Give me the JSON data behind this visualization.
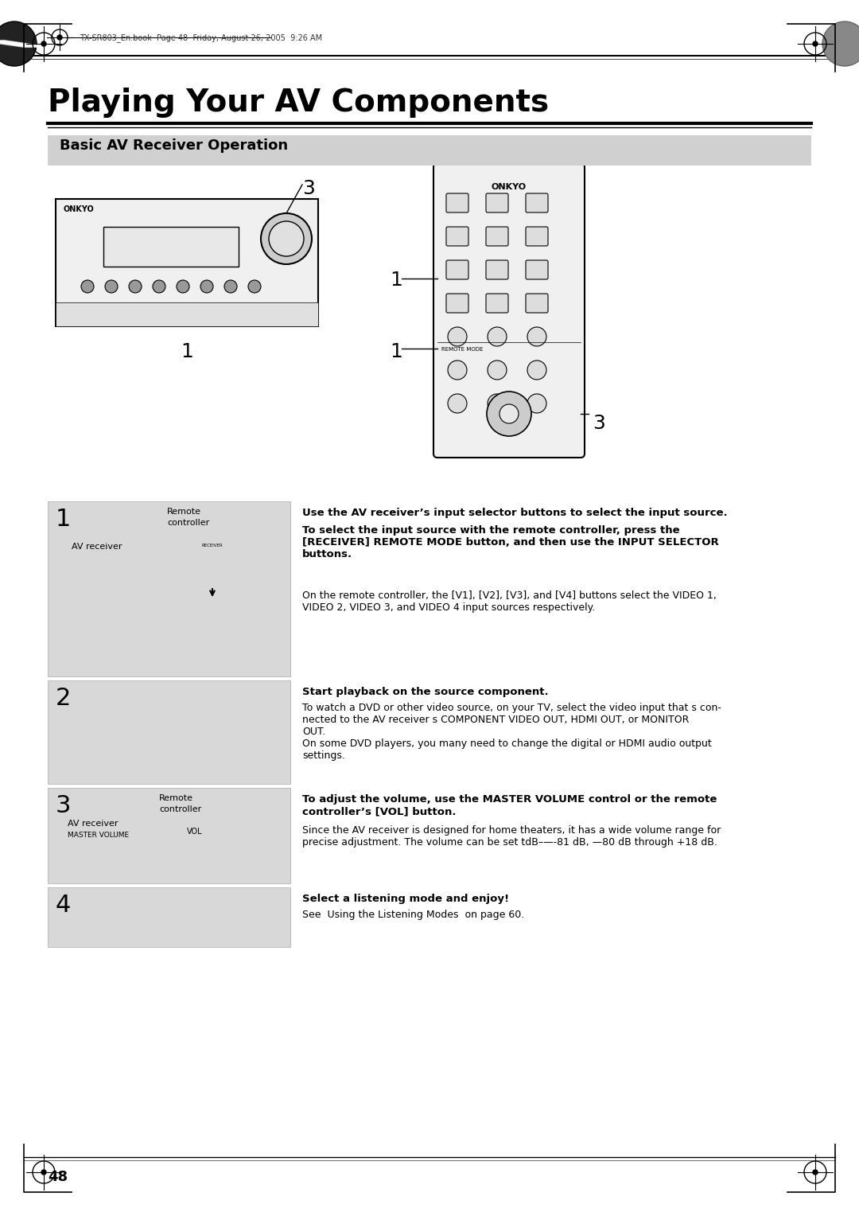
{
  "page_bg": "#ffffff",
  "header_text": "TX-SR803_En.book  Page 48  Friday, August 26, 2005  9:26 AM",
  "title": "Playing Your AV Components",
  "section_header": "Basic AV Receiver Operation",
  "section_header_bg": "#d0d0d0",
  "step1_num": "1",
  "step1_bold1": "Use the AV receiver’s input selector buttons to select the input source.",
  "step1_bold2": "To select the input source with the remote controller, press the\n[RECEIVER] REMOTE MODE button, and then use the INPUT SELECTOR\nbuttons.",
  "step1_normal": "On the remote controller, the [V1], [V2], [V3], and [V4] buttons select the VIDEO 1,\nVIDEO 2, VIDEO 3, and VIDEO 4 input sources respectively.",
  "step2_num": "2",
  "step2_bold": "Start playback on the source component.",
  "step2_normal": "To watch a DVD or other video source, on your TV, select the video input that s con-\nnected to the AV receiver s COMPONENT VIDEO OUT, HDMI OUT, or MONITOR\nOUT.\nOn some DVD players, you many need to change the digital or HDMI audio output\nsettings.",
  "step3_num": "3",
  "step3_bold": "To adjust the volume, use the MASTER VOLUME control or the remote\ncontroller’s [VOL] button.",
  "step3_normal": "Since the AV receiver is designed for home theaters, it has a wide volume range for\nprecise adjustment. The volume can be set tdB–—-81 dB, —80 dB through +18 dB.",
  "step4_num": "4",
  "step4_bold": "Select a listening mode and enjoy!",
  "step4_normal": "See  Using the Listening Modes  on page 60.",
  "page_num": "48",
  "step_bg": "#d8d8d8",
  "step_label_color": "#000000",
  "text_color": "#000000"
}
